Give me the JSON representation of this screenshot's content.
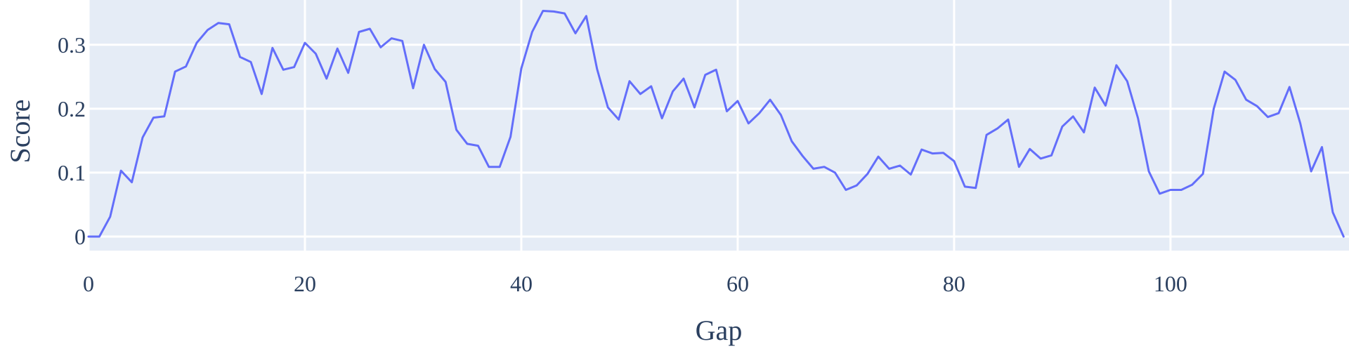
{
  "chart_data": {
    "type": "line",
    "xlabel": "Gap",
    "ylabel": "Score",
    "xlim": [
      0,
      116.5
    ],
    "ylim": [
      -0.022,
      0.37
    ],
    "x_ticks": [
      0,
      20,
      40,
      60,
      80,
      100
    ],
    "y_ticks": [
      0,
      0.1,
      0.2,
      0.3
    ],
    "y_tick_labels": [
      "0",
      "0.1",
      "0.2",
      "0.3"
    ],
    "grid": true,
    "legend": "none",
    "series": [
      {
        "color": "#636efa",
        "x": [
          0,
          1,
          2,
          3,
          4,
          5,
          6,
          7,
          8,
          9,
          10,
          11,
          12,
          13,
          14,
          15,
          16,
          17,
          18,
          19,
          20,
          21,
          22,
          23,
          24,
          25,
          26,
          27,
          28,
          29,
          30,
          31,
          32,
          33,
          34,
          35,
          36,
          37,
          38,
          39,
          40,
          41,
          42,
          43,
          44,
          45,
          46,
          47,
          48,
          49,
          50,
          51,
          52,
          53,
          54,
          55,
          56,
          57,
          58,
          59,
          60,
          61,
          62,
          63,
          64,
          65,
          66,
          67,
          68,
          69,
          70,
          71,
          72,
          73,
          74,
          75,
          76,
          77,
          78,
          79,
          80,
          81,
          82,
          83,
          84,
          85,
          86,
          87,
          88,
          89,
          90,
          91,
          92,
          93,
          94,
          95,
          96,
          97,
          98,
          99,
          100,
          101,
          102,
          103,
          104,
          105,
          106,
          107,
          108,
          109,
          110,
          111,
          112,
          113,
          114,
          115,
          116
        ],
        "y": [
          0,
          0,
          0.031,
          0.103,
          0.085,
          0.155,
          0.186,
          0.188,
          0.258,
          0.266,
          0.303,
          0.323,
          0.334,
          0.332,
          0.281,
          0.273,
          0.223,
          0.295,
          0.261,
          0.265,
          0.303,
          0.286,
          0.247,
          0.294,
          0.256,
          0.32,
          0.325,
          0.296,
          0.31,
          0.306,
          0.232,
          0.3,
          0.262,
          0.242,
          0.167,
          0.145,
          0.142,
          0.109,
          0.109,
          0.156,
          0.263,
          0.32,
          0.353,
          0.352,
          0.349,
          0.318,
          0.345,
          0.262,
          0.202,
          0.183,
          0.243,
          0.223,
          0.235,
          0.185,
          0.227,
          0.247,
          0.202,
          0.253,
          0.261,
          0.196,
          0.212,
          0.177,
          0.193,
          0.214,
          0.19,
          0.149,
          0.126,
          0.106,
          0.109,
          0.1,
          0.073,
          0.08,
          0.098,
          0.125,
          0.106,
          0.111,
          0.097,
          0.136,
          0.13,
          0.131,
          0.118,
          0.078,
          0.076,
          0.159,
          0.169,
          0.183,
          0.109,
          0.137,
          0.122,
          0.127,
          0.172,
          0.188,
          0.163,
          0.233,
          0.205,
          0.268,
          0.243,
          0.185,
          0.102,
          0.067,
          0.073,
          0.073,
          0.081,
          0.098,
          0.2,
          0.258,
          0.245,
          0.214,
          0.204,
          0.187,
          0.193,
          0.234,
          0.177,
          0.102,
          0.14,
          0.038,
          0
        ]
      }
    ]
  }
}
